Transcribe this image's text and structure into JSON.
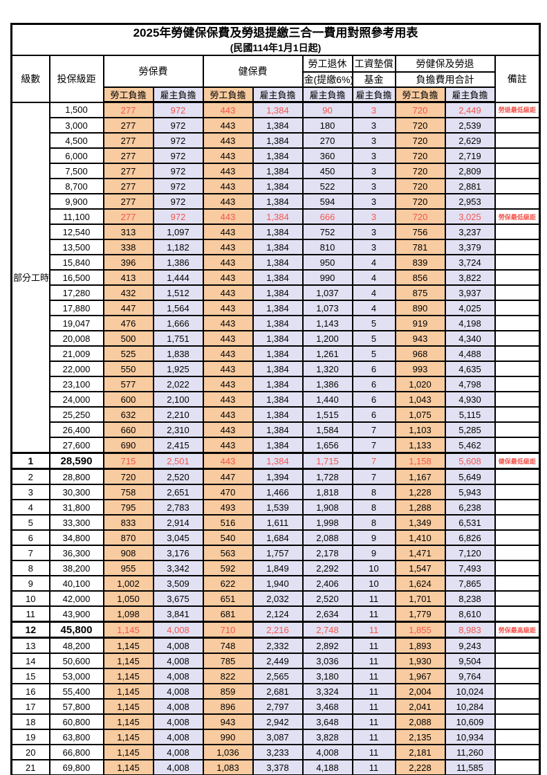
{
  "title": "2025年勞健保保費及勞退提繳三合一費用對照參考用表",
  "subtitle": "(民國114年1月1日起)",
  "colors": {
    "employee_bg": "#F8CBA0",
    "employer_bg": "#E2E1F3",
    "highlight_red": "#F4554D"
  },
  "columns": {
    "level": "級數",
    "bracket": "投保級距",
    "labor": "勞保費",
    "health": "健保費",
    "pension_top": "勞工退休",
    "pension_bottom": "金(提繳6%)",
    "wage_top": "工資墊償",
    "wage_bottom": "基金",
    "total_top": "勞健保及勞退",
    "total_bottom": "負擔費用合計",
    "employee": "勞工負擔",
    "employer": "雇主負擔",
    "remark": "備註"
  },
  "part_time_label": "部分工時",
  "rows": [
    {
      "level": "",
      "bracket": "1,500",
      "values": [
        "277",
        "972",
        "443",
        "1,384",
        "90",
        "3",
        "720",
        "2,449"
      ],
      "remark": "勞退最低級距",
      "red": true,
      "emphasis": false
    },
    {
      "level": "",
      "bracket": "3,000",
      "values": [
        "277",
        "972",
        "443",
        "1,384",
        "180",
        "3",
        "720",
        "2,539"
      ],
      "remark": "",
      "red": false,
      "emphasis": false
    },
    {
      "level": "",
      "bracket": "4,500",
      "values": [
        "277",
        "972",
        "443",
        "1,384",
        "270",
        "3",
        "720",
        "2,629"
      ],
      "remark": "",
      "red": false,
      "emphasis": false
    },
    {
      "level": "",
      "bracket": "6,000",
      "values": [
        "277",
        "972",
        "443",
        "1,384",
        "360",
        "3",
        "720",
        "2,719"
      ],
      "remark": "",
      "red": false,
      "emphasis": false
    },
    {
      "level": "",
      "bracket": "7,500",
      "values": [
        "277",
        "972",
        "443",
        "1,384",
        "450",
        "3",
        "720",
        "2,809"
      ],
      "remark": "",
      "red": false,
      "emphasis": false
    },
    {
      "level": "",
      "bracket": "8,700",
      "values": [
        "277",
        "972",
        "443",
        "1,384",
        "522",
        "3",
        "720",
        "2,881"
      ],
      "remark": "",
      "red": false,
      "emphasis": false
    },
    {
      "level": "",
      "bracket": "9,900",
      "values": [
        "277",
        "972",
        "443",
        "1,384",
        "594",
        "3",
        "720",
        "2,953"
      ],
      "remark": "",
      "red": false,
      "emphasis": false
    },
    {
      "level": "",
      "bracket": "11,100",
      "values": [
        "277",
        "972",
        "443",
        "1,384",
        "666",
        "3",
        "720",
        "3,025"
      ],
      "remark": "勞保最低級距",
      "red": true,
      "emphasis": false
    },
    {
      "level": "",
      "bracket": "12,540",
      "values": [
        "313",
        "1,097",
        "443",
        "1,384",
        "752",
        "3",
        "756",
        "3,237"
      ],
      "remark": "",
      "red": false,
      "emphasis": false
    },
    {
      "level": "",
      "bracket": "13,500",
      "values": [
        "338",
        "1,182",
        "443",
        "1,384",
        "810",
        "3",
        "781",
        "3,379"
      ],
      "remark": "",
      "red": false,
      "emphasis": false
    },
    {
      "level": "",
      "bracket": "15,840",
      "values": [
        "396",
        "1,386",
        "443",
        "1,384",
        "950",
        "4",
        "839",
        "3,724"
      ],
      "remark": "",
      "red": false,
      "emphasis": false
    },
    {
      "level": "",
      "bracket": "16,500",
      "values": [
        "413",
        "1,444",
        "443",
        "1,384",
        "990",
        "4",
        "856",
        "3,822"
      ],
      "remark": "",
      "red": false,
      "emphasis": false
    },
    {
      "level": "",
      "bracket": "17,280",
      "values": [
        "432",
        "1,512",
        "443",
        "1,384",
        "1,037",
        "4",
        "875",
        "3,937"
      ],
      "remark": "",
      "red": false,
      "emphasis": false
    },
    {
      "level": "",
      "bracket": "17,880",
      "values": [
        "447",
        "1,564",
        "443",
        "1,384",
        "1,073",
        "4",
        "890",
        "4,025"
      ],
      "remark": "",
      "red": false,
      "emphasis": false
    },
    {
      "level": "",
      "bracket": "19,047",
      "values": [
        "476",
        "1,666",
        "443",
        "1,384",
        "1,143",
        "5",
        "919",
        "4,198"
      ],
      "remark": "",
      "red": false,
      "emphasis": false
    },
    {
      "level": "",
      "bracket": "20,008",
      "values": [
        "500",
        "1,751",
        "443",
        "1,384",
        "1,200",
        "5",
        "943",
        "4,340"
      ],
      "remark": "",
      "red": false,
      "emphasis": false
    },
    {
      "level": "",
      "bracket": "21,009",
      "values": [
        "525",
        "1,838",
        "443",
        "1,384",
        "1,261",
        "5",
        "968",
        "4,488"
      ],
      "remark": "",
      "red": false,
      "emphasis": false
    },
    {
      "level": "",
      "bracket": "22,000",
      "values": [
        "550",
        "1,925",
        "443",
        "1,384",
        "1,320",
        "6",
        "993",
        "4,635"
      ],
      "remark": "",
      "red": false,
      "emphasis": false
    },
    {
      "level": "",
      "bracket": "23,100",
      "values": [
        "577",
        "2,022",
        "443",
        "1,384",
        "1,386",
        "6",
        "1,020",
        "4,798"
      ],
      "remark": "",
      "red": false,
      "emphasis": false
    },
    {
      "level": "",
      "bracket": "24,000",
      "values": [
        "600",
        "2,100",
        "443",
        "1,384",
        "1,440",
        "6",
        "1,043",
        "4,930"
      ],
      "remark": "",
      "red": false,
      "emphasis": false
    },
    {
      "level": "",
      "bracket": "25,250",
      "values": [
        "632",
        "2,210",
        "443",
        "1,384",
        "1,515",
        "6",
        "1,075",
        "5,115"
      ],
      "remark": "",
      "red": false,
      "emphasis": false
    },
    {
      "level": "",
      "bracket": "26,400",
      "values": [
        "660",
        "2,310",
        "443",
        "1,384",
        "1,584",
        "7",
        "1,103",
        "5,285"
      ],
      "remark": "",
      "red": false,
      "emphasis": false
    },
    {
      "level": "",
      "bracket": "27,600",
      "values": [
        "690",
        "2,415",
        "443",
        "1,384",
        "1,656",
        "7",
        "1,133",
        "5,462"
      ],
      "remark": "",
      "red": false,
      "emphasis": false
    },
    {
      "level": "1",
      "bracket": "28,590",
      "values": [
        "715",
        "2,501",
        "443",
        "1,384",
        "1,715",
        "7",
        "1,158",
        "5,608"
      ],
      "remark": "健保最低級距",
      "red": true,
      "emphasis": true
    },
    {
      "level": "2",
      "bracket": "28,800",
      "values": [
        "720",
        "2,520",
        "447",
        "1,394",
        "1,728",
        "7",
        "1,167",
        "5,649"
      ],
      "remark": "",
      "red": false,
      "emphasis": false
    },
    {
      "level": "3",
      "bracket": "30,300",
      "values": [
        "758",
        "2,651",
        "470",
        "1,466",
        "1,818",
        "8",
        "1,228",
        "5,943"
      ],
      "remark": "",
      "red": false,
      "emphasis": false
    },
    {
      "level": "4",
      "bracket": "31,800",
      "values": [
        "795",
        "2,783",
        "493",
        "1,539",
        "1,908",
        "8",
        "1,288",
        "6,238"
      ],
      "remark": "",
      "red": false,
      "emphasis": false
    },
    {
      "level": "5",
      "bracket": "33,300",
      "values": [
        "833",
        "2,914",
        "516",
        "1,611",
        "1,998",
        "8",
        "1,349",
        "6,531"
      ],
      "remark": "",
      "red": false,
      "emphasis": false
    },
    {
      "level": "6",
      "bracket": "34,800",
      "values": [
        "870",
        "3,045",
        "540",
        "1,684",
        "2,088",
        "9",
        "1,410",
        "6,826"
      ],
      "remark": "",
      "red": false,
      "emphasis": false
    },
    {
      "level": "7",
      "bracket": "36,300",
      "values": [
        "908",
        "3,176",
        "563",
        "1,757",
        "2,178",
        "9",
        "1,471",
        "7,120"
      ],
      "remark": "",
      "red": false,
      "emphasis": false
    },
    {
      "level": "8",
      "bracket": "38,200",
      "values": [
        "955",
        "3,342",
        "592",
        "1,849",
        "2,292",
        "10",
        "1,547",
        "7,493"
      ],
      "remark": "",
      "red": false,
      "emphasis": false
    },
    {
      "level": "9",
      "bracket": "40,100",
      "values": [
        "1,002",
        "3,509",
        "622",
        "1,940",
        "2,406",
        "10",
        "1,624",
        "7,865"
      ],
      "remark": "",
      "red": false,
      "emphasis": false
    },
    {
      "level": "10",
      "bracket": "42,000",
      "values": [
        "1,050",
        "3,675",
        "651",
        "2,032",
        "2,520",
        "11",
        "1,701",
        "8,238"
      ],
      "remark": "",
      "red": false,
      "emphasis": false
    },
    {
      "level": "11",
      "bracket": "43,900",
      "values": [
        "1,098",
        "3,841",
        "681",
        "2,124",
        "2,634",
        "11",
        "1,779",
        "8,610"
      ],
      "remark": "",
      "red": false,
      "emphasis": false
    },
    {
      "level": "12",
      "bracket": "45,800",
      "values": [
        "1,145",
        "4,008",
        "710",
        "2,216",
        "2,748",
        "11",
        "1,855",
        "8,983"
      ],
      "remark": "勞保最高級距",
      "red": true,
      "emphasis": true
    },
    {
      "level": "13",
      "bracket": "48,200",
      "values": [
        "1,145",
        "4,008",
        "748",
        "2,332",
        "2,892",
        "11",
        "1,893",
        "9,243"
      ],
      "remark": "",
      "red": false,
      "emphasis": false
    },
    {
      "level": "14",
      "bracket": "50,600",
      "values": [
        "1,145",
        "4,008",
        "785",
        "2,449",
        "3,036",
        "11",
        "1,930",
        "9,504"
      ],
      "remark": "",
      "red": false,
      "emphasis": false
    },
    {
      "level": "15",
      "bracket": "53,000",
      "values": [
        "1,145",
        "4,008",
        "822",
        "2,565",
        "3,180",
        "11",
        "1,967",
        "9,764"
      ],
      "remark": "",
      "red": false,
      "emphasis": false
    },
    {
      "level": "16",
      "bracket": "55,400",
      "values": [
        "1,145",
        "4,008",
        "859",
        "2,681",
        "3,324",
        "11",
        "2,004",
        "10,024"
      ],
      "remark": "",
      "red": false,
      "emphasis": false
    },
    {
      "level": "17",
      "bracket": "57,800",
      "values": [
        "1,145",
        "4,008",
        "896",
        "2,797",
        "3,468",
        "11",
        "2,041",
        "10,284"
      ],
      "remark": "",
      "red": false,
      "emphasis": false
    },
    {
      "level": "18",
      "bracket": "60,800",
      "values": [
        "1,145",
        "4,008",
        "943",
        "2,942",
        "3,648",
        "11",
        "2,088",
        "10,609"
      ],
      "remark": "",
      "red": false,
      "emphasis": false
    },
    {
      "level": "19",
      "bracket": "63,800",
      "values": [
        "1,145",
        "4,008",
        "990",
        "3,087",
        "3,828",
        "11",
        "2,135",
        "10,934"
      ],
      "remark": "",
      "red": false,
      "emphasis": false
    },
    {
      "level": "20",
      "bracket": "66,800",
      "values": [
        "1,145",
        "4,008",
        "1,036",
        "3,233",
        "4,008",
        "11",
        "2,181",
        "11,260"
      ],
      "remark": "",
      "red": false,
      "emphasis": false
    },
    {
      "level": "21",
      "bracket": "69,800",
      "values": [
        "1,145",
        "4,008",
        "1,083",
        "3,378",
        "4,188",
        "11",
        "2,228",
        "11,585"
      ],
      "remark": "",
      "red": false,
      "emphasis": false
    }
  ]
}
